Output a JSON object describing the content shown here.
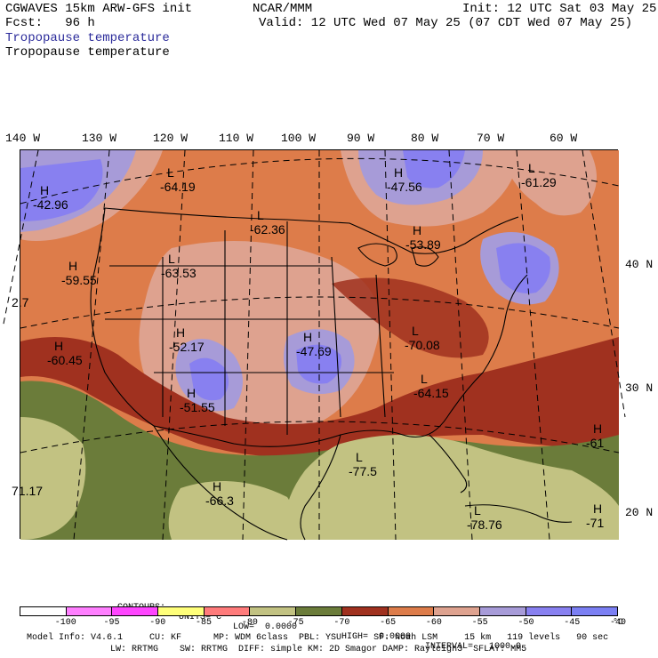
{
  "header": {
    "line1_left": "CGWAVES 15km ARW-GFS init",
    "line1_mid": "NCAR/MMM",
    "line1_right": "Init: 12 UTC Sat 03 May 25",
    "line2_left": "Fcst:   96 h",
    "line2_right": "Valid: 12 UTC Wed 07 May 25 (07 CDT Wed 07 May 25)",
    "subtitle_blue": "Tropopause temperature",
    "subtitle_black": "Tropopause temperature"
  },
  "longitudes": [
    "140 W",
    "130 W",
    "120 W",
    "110 W",
    "100 W",
    "90 W",
    "80 W",
    "70 W",
    "60 W"
  ],
  "latitudes": [
    "40 N",
    "30 N",
    "20 N"
  ],
  "extrema": [
    {
      "type": "H",
      "value": "-42.96"
    },
    {
      "type": "L",
      "value": "-64.19"
    },
    {
      "type": "L",
      "value": "-62.36"
    },
    {
      "type": "H",
      "value": "-47.56"
    },
    {
      "type": "L",
      "value": "-61.29"
    },
    {
      "type": "H",
      "value": "-53.89"
    },
    {
      "type": "H",
      "value": "-59.55"
    },
    {
      "type": "L",
      "value": "-63.53"
    },
    {
      "type": "H",
      "value": "-52.17"
    },
    {
      "type": "H",
      "value": "-60.45"
    },
    {
      "type": "H",
      "value": "-47.69"
    },
    {
      "type": "L",
      "value": "-70.08"
    },
    {
      "type": "L",
      "value": "-64.15"
    },
    {
      "type": "H",
      "value": "-51.55"
    },
    {
      "type": "L",
      "value": "-77.5"
    },
    {
      "type": "H",
      "value": "-66.3"
    },
    {
      "type": "L",
      "value": "-78.76"
    },
    {
      "type": "H",
      "value": "-61"
    },
    {
      "type": "H",
      "value": "-71"
    },
    {
      "type": "",
      "value": "71.17"
    },
    {
      "type": "",
      "value": "2.7"
    }
  ],
  "contours": {
    "label": "CONTOURS:",
    "units": "UNITS=°C",
    "low": "LOW=  0.0000",
    "high": "HIGH=  0.0000",
    "interval": "INTERVAL=   1000.0"
  },
  "colorbar": {
    "colors": [
      "#ffffff",
      "#ff7fff",
      "#ff45ff",
      "#ffff7a",
      "#ff7b7b",
      "#c2c282",
      "#6b7c3a",
      "#a0311f",
      "#dd7c4a",
      "#dea28f",
      "#a79bd8",
      "#8880f0",
      "#7b7ff3"
    ],
    "labels": [
      "-100",
      "-95",
      "-90",
      "-85",
      "-80",
      "-75",
      "-70",
      "-65",
      "-60",
      "-55",
      "-50",
      "-45",
      "-40",
      "°C"
    ]
  },
  "footer": {
    "line1": "Model Info: V4.6.1     CU: KF      MP: WDM 6class  PBL: YSU      SF: Noah LSM     15 km   119 levels   90 sec",
    "line2": "LW: RRTMG    SW: RRTMG  DIFF: simple KM: 2D Smagor DAMP: Rayleigh3  SFLAY: MM5"
  }
}
